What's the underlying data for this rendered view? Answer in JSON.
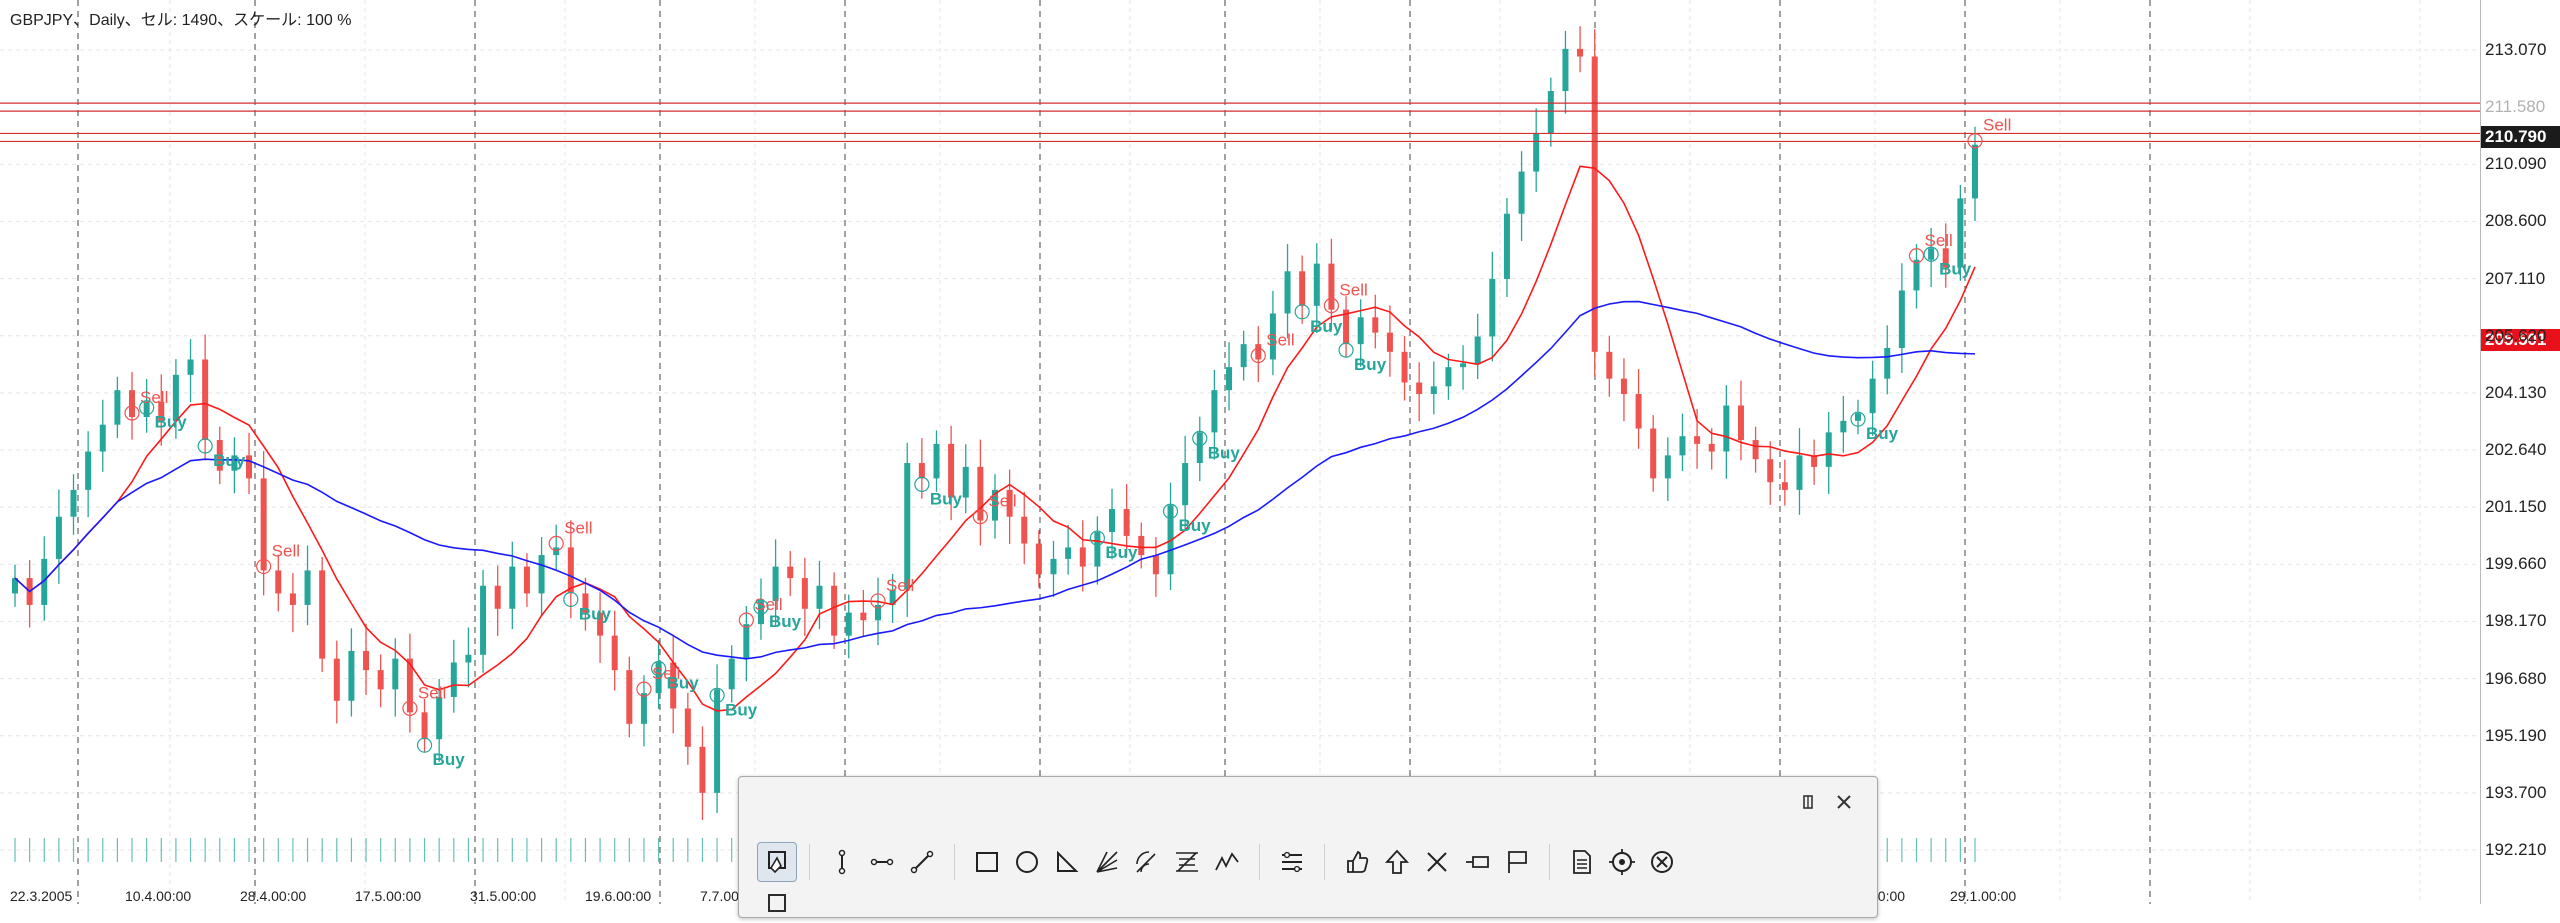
{
  "chart": {
    "title": "GBPJPY、Daily、セル: 1490、スケール: 100 %",
    "symbol": "GBPJPY",
    "timeframe": "Daily",
    "price_levels": [
      "213.070",
      "210.090",
      "208.600",
      "207.110",
      "205.620",
      "204.130",
      "202.640",
      "201.150",
      "199.660",
      "198.170",
      "196.680",
      "195.190",
      "193.700",
      "192.210"
    ],
    "hidden_levels": [
      "211.580"
    ],
    "current_price": "210.790",
    "ma_price": "205.501",
    "date_labels": [
      "22.3.2005",
      "10.4.00:00",
      "28.4.00:00",
      "17.5.00:00",
      "31.5.00:00",
      "19.6.00:00",
      "7.7.00:00",
      "00:00",
      "29.1.00:00"
    ],
    "colors": {
      "bull": "#26a69a",
      "bear": "#ef5350",
      "fast_ma": "#ff1a1a",
      "slow_ma": "#1a1aff",
      "level_lines": "#d32f2f",
      "sell_label": "#ef5350",
      "buy_label": "#26a69a",
      "grid": "#e5e5e5",
      "separator": "#444444"
    },
    "signal_labels": {
      "sell": "Sell",
      "buy": "Buy"
    }
  },
  "chart_data": {
    "type": "candlestick",
    "title": "GBPJPY、Daily、セル: 1490、スケール: 100 %",
    "ylim": [
      191.5,
      214.0
    ],
    "y_ticks": [
      213.07,
      210.09,
      208.6,
      207.11,
      205.62,
      204.13,
      202.64,
      201.15,
      199.66,
      198.17,
      196.68,
      195.19,
      193.7,
      192.21
    ],
    "x_ticks": [
      "22.3.2005",
      "10.4.00:00",
      "28.4.00:00",
      "17.5.00:00",
      "31.5.00:00",
      "19.6.00:00",
      "7.7.00:00",
      "00:00",
      "29.1.00:00"
    ],
    "series": [
      {
        "name": "close",
        "values": [
          199.3,
          198.6,
          199.8,
          200.9,
          201.6,
          202.6,
          203.3,
          204.2,
          203.5,
          203.9,
          203.4,
          204.6,
          205.0,
          202.9,
          202.1,
          202.5,
          201.9,
          199.5,
          198.9,
          198.6,
          199.5,
          197.2,
          196.1,
          197.4,
          196.9,
          196.4,
          197.2,
          195.8,
          195.1,
          196.2,
          197.1,
          197.3,
          199.1,
          198.5,
          199.6,
          198.9,
          199.9,
          200.1,
          198.9,
          198.4,
          197.8,
          196.9,
          195.5,
          196.3,
          197.1,
          195.9,
          194.9,
          193.7,
          196.4,
          197.2,
          198.1,
          198.7,
          199.6,
          199.3,
          198.5,
          199.1,
          197.8,
          198.4,
          198.2,
          198.6,
          199.0,
          202.3,
          201.9,
          202.8,
          201.4,
          202.2,
          200.8,
          201.6,
          200.9,
          200.2,
          199.4,
          199.8,
          200.1,
          199.6,
          200.5,
          201.1,
          200.4,
          199.9,
          199.4,
          201.2,
          202.3,
          203.1,
          204.2,
          204.8,
          205.4,
          205.0,
          206.2,
          207.3,
          206.4,
          207.5,
          206.3,
          205.4,
          206.1,
          205.7,
          205.2,
          204.4,
          204.1,
          204.3,
          204.8,
          204.9,
          205.6,
          207.1,
          208.8,
          209.9,
          210.9,
          212.0,
          213.1,
          212.9,
          205.2,
          204.5,
          204.1,
          203.2,
          201.9,
          202.5,
          203.0,
          202.8,
          202.6,
          203.8,
          202.9,
          202.4,
          201.8,
          201.6,
          202.5,
          202.2,
          203.1,
          203.4,
          203.6,
          204.5,
          205.3,
          206.8,
          207.6,
          207.9,
          207.4,
          209.2,
          210.6
        ]
      },
      {
        "name": "fast MA",
        "values": []
      },
      {
        "name": "slow MA",
        "values": []
      }
    ],
    "horizontal_levels": [
      211.58,
      210.79
    ],
    "grid": true
  },
  "toolbar": {
    "rows": [
      [
        "select-edit",
        "|",
        "vertical-line",
        "horizontal-line",
        "trend-line",
        "|",
        "rectangle",
        "ellipse",
        "triangle",
        "gann-fan",
        "fibo-arc",
        "fibo-retracement",
        "elliott-wave",
        "|",
        "channel-tool",
        "|",
        "thumbs-up",
        "arrow-up",
        "cross",
        "price-label",
        "flag",
        "|",
        "text-doc",
        "target",
        "no-entry"
      ],
      [
        "shape-tool",
        "|",
        "pencil",
        "dots",
        "|",
        "grid-tool",
        "channel",
        "dots2",
        "line-tool",
        "wave-tool",
        "line-tool2",
        "|",
        "menu-tool",
        "|",
        "thumbs-down",
        "arrow-down",
        "check",
        "arrow-left",
        "|",
        "lock",
        "lock2",
        "lock3"
      ]
    ]
  }
}
